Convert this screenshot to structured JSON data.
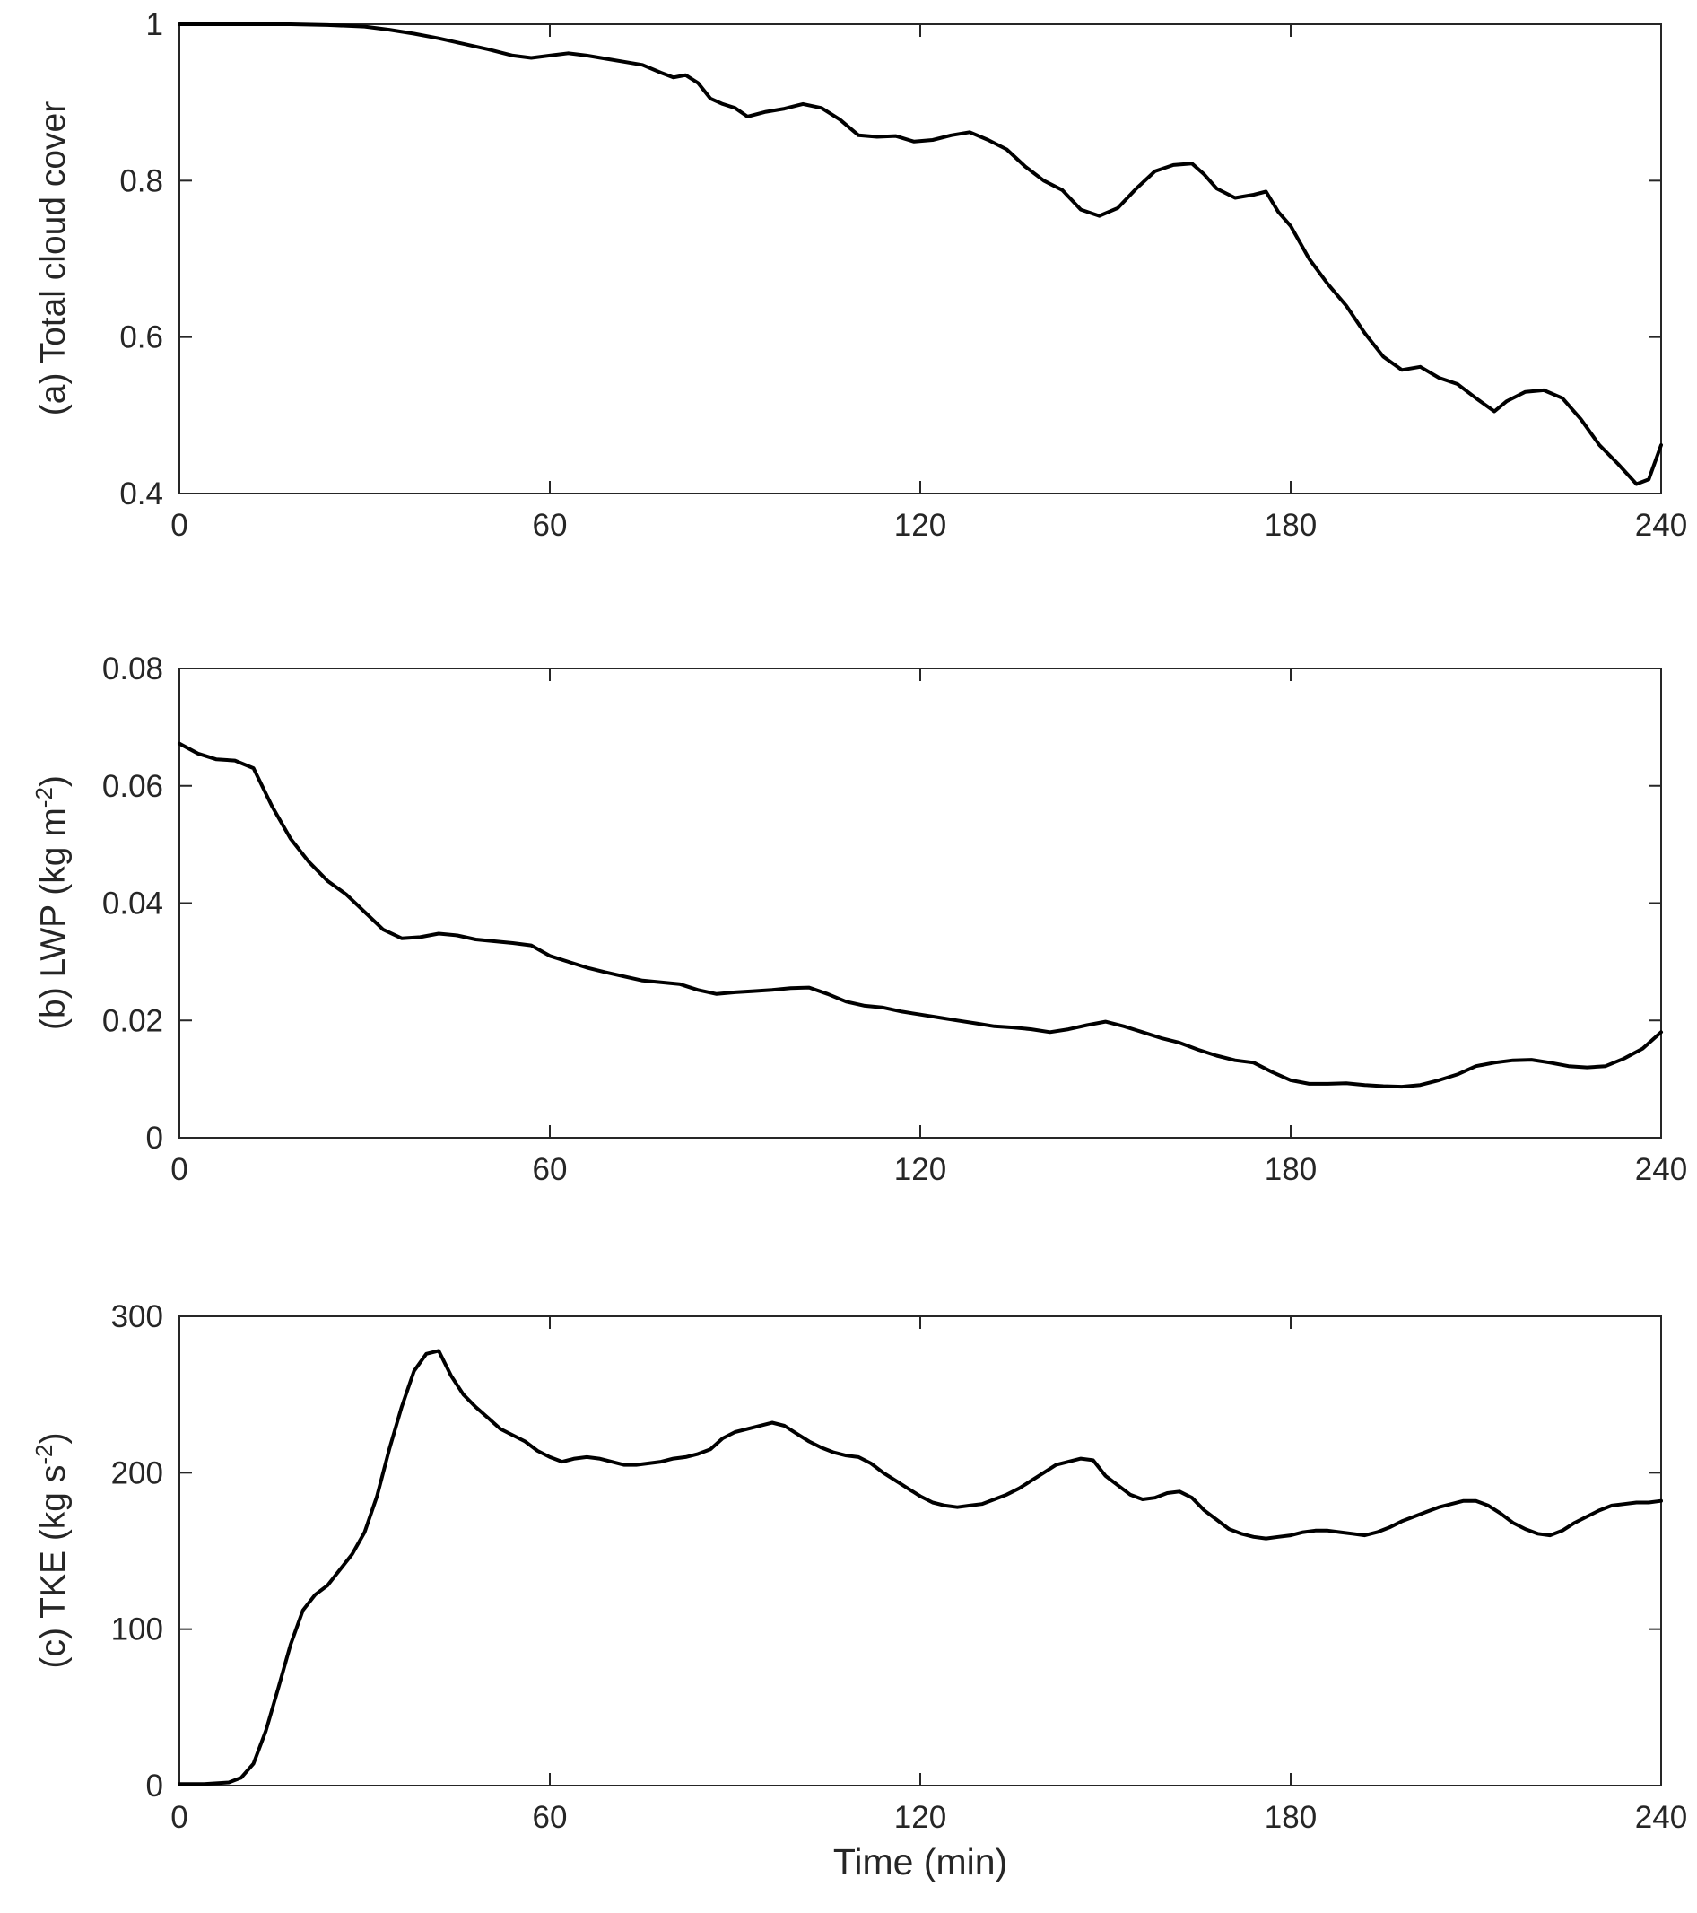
{
  "figure": {
    "xlabel": "Time (min)",
    "background_color": "#ffffff",
    "axis_color": "#262626",
    "line_color": "#000000"
  },
  "chart_data": [
    {
      "type": "line",
      "panel": "a",
      "ylabel": "(a) Total cloud cover",
      "ylabel_parts": [
        {
          "text": "(a) Total cloud cover",
          "sup": false
        }
      ],
      "xlim": [
        0,
        240
      ],
      "ylim": [
        0.4,
        1
      ],
      "x_ticks": [
        0,
        60,
        120,
        180,
        240
      ],
      "x_tick_labels": [
        "0",
        "60",
        "120",
        "180",
        "240"
      ],
      "y_ticks": [
        0.4,
        0.6,
        0.8,
        1
      ],
      "y_tick_labels": [
        "0.4",
        "0.6",
        "0.8",
        "1"
      ],
      "grid": false,
      "legend": null,
      "x": [
        0,
        6,
        12,
        18,
        24,
        30,
        34,
        38,
        42,
        46,
        50,
        54,
        57,
        60,
        63,
        66,
        69,
        72,
        75,
        78,
        80,
        82,
        84,
        86,
        88,
        90,
        92,
        95,
        98,
        101,
        104,
        107,
        110,
        113,
        116,
        119,
        122,
        125,
        128,
        131,
        134,
        137,
        140,
        143,
        146,
        149,
        152,
        155,
        158,
        161,
        164,
        166,
        168,
        171,
        174,
        176,
        178,
        180,
        183,
        186,
        189,
        192,
        195,
        198,
        201,
        204,
        207,
        210,
        213,
        215,
        218,
        221,
        224,
        227,
        230,
        233,
        236,
        238,
        240
      ],
      "y": [
        1.0,
        1.0,
        1.0,
        1.0,
        0.999,
        0.997,
        0.993,
        0.988,
        0.982,
        0.975,
        0.968,
        0.96,
        0.957,
        0.96,
        0.963,
        0.96,
        0.956,
        0.952,
        0.948,
        0.938,
        0.932,
        0.935,
        0.925,
        0.905,
        0.898,
        0.893,
        0.882,
        0.888,
        0.892,
        0.898,
        0.893,
        0.878,
        0.858,
        0.856,
        0.857,
        0.85,
        0.852,
        0.858,
        0.862,
        0.852,
        0.84,
        0.818,
        0.8,
        0.788,
        0.763,
        0.755,
        0.765,
        0.79,
        0.812,
        0.82,
        0.822,
        0.808,
        0.79,
        0.778,
        0.782,
        0.786,
        0.76,
        0.742,
        0.7,
        0.668,
        0.64,
        0.605,
        0.575,
        0.558,
        0.562,
        0.548,
        0.54,
        0.522,
        0.505,
        0.518,
        0.53,
        0.532,
        0.522,
        0.495,
        0.462,
        0.438,
        0.412,
        0.418,
        0.462
      ]
    },
    {
      "type": "line",
      "panel": "b",
      "ylabel": "(b) LWP (kg m⁻²)",
      "ylabel_parts": [
        {
          "text": "(b) LWP (kg m",
          "sup": false
        },
        {
          "text": "-2",
          "sup": true
        },
        {
          "text": ")",
          "sup": false
        }
      ],
      "xlim": [
        0,
        240
      ],
      "ylim": [
        0,
        0.08
      ],
      "x_ticks": [
        0,
        60,
        120,
        180,
        240
      ],
      "x_tick_labels": [
        "0",
        "60",
        "120",
        "180",
        "240"
      ],
      "y_ticks": [
        0,
        0.02,
        0.04,
        0.06,
        0.08
      ],
      "y_tick_labels": [
        "0",
        "0.02",
        "0.04",
        "0.06",
        "0.08"
      ],
      "grid": false,
      "legend": null,
      "x": [
        0,
        3,
        6,
        9,
        12,
        15,
        18,
        21,
        24,
        27,
        30,
        33,
        36,
        39,
        42,
        45,
        48,
        51,
        54,
        57,
        60,
        63,
        66,
        69,
        72,
        75,
        78,
        81,
        84,
        87,
        90,
        93,
        96,
        99,
        102,
        105,
        108,
        111,
        114,
        117,
        120,
        123,
        126,
        129,
        132,
        135,
        138,
        141,
        144,
        147,
        150,
        153,
        156,
        159,
        162,
        165,
        168,
        171,
        174,
        177,
        180,
        183,
        186,
        189,
        192,
        195,
        198,
        201,
        204,
        207,
        210,
        213,
        216,
        219,
        222,
        225,
        228,
        231,
        234,
        237,
        240
      ],
      "y": [
        0.0672,
        0.0655,
        0.0645,
        0.0643,
        0.063,
        0.0565,
        0.051,
        0.047,
        0.0438,
        0.0415,
        0.0385,
        0.0355,
        0.034,
        0.0342,
        0.0348,
        0.0345,
        0.0338,
        0.0335,
        0.0332,
        0.0328,
        0.031,
        0.03,
        0.029,
        0.0282,
        0.0275,
        0.0268,
        0.0265,
        0.0262,
        0.0252,
        0.0245,
        0.0248,
        0.025,
        0.0252,
        0.0255,
        0.0256,
        0.0245,
        0.0232,
        0.0225,
        0.0222,
        0.0215,
        0.021,
        0.0205,
        0.02,
        0.0195,
        0.019,
        0.0188,
        0.0185,
        0.018,
        0.0185,
        0.0192,
        0.0198,
        0.019,
        0.018,
        0.017,
        0.0162,
        0.015,
        0.014,
        0.0132,
        0.0128,
        0.0112,
        0.0098,
        0.0092,
        0.0092,
        0.0093,
        0.009,
        0.0088,
        0.0087,
        0.009,
        0.0098,
        0.0108,
        0.0122,
        0.0128,
        0.0132,
        0.0133,
        0.0128,
        0.0122,
        0.012,
        0.0122,
        0.0135,
        0.0152,
        0.018
      ]
    },
    {
      "type": "line",
      "panel": "c",
      "ylabel": "(c) TKE (kg s⁻²)",
      "ylabel_parts": [
        {
          "text": "(c) TKE (kg s",
          "sup": false
        },
        {
          "text": "-2",
          "sup": true
        },
        {
          "text": ")",
          "sup": false
        }
      ],
      "xlabel": "Time (min)",
      "xlim": [
        0,
        240
      ],
      "ylim": [
        0,
        300
      ],
      "x_ticks": [
        0,
        60,
        120,
        180,
        240
      ],
      "x_tick_labels": [
        "0",
        "60",
        "120",
        "180",
        "240"
      ],
      "y_ticks": [
        0,
        100,
        200,
        300
      ],
      "y_tick_labels": [
        "0",
        "100",
        "200",
        "300"
      ],
      "grid": false,
      "legend": null,
      "x": [
        0,
        4,
        8,
        10,
        12,
        14,
        16,
        18,
        20,
        22,
        24,
        26,
        28,
        30,
        32,
        34,
        36,
        38,
        40,
        42,
        44,
        46,
        48,
        50,
        52,
        54,
        56,
        58,
        60,
        62,
        64,
        66,
        68,
        70,
        72,
        74,
        76,
        78,
        80,
        82,
        84,
        86,
        88,
        90,
        93,
        96,
        98,
        100,
        102,
        104,
        106,
        108,
        110,
        112,
        114,
        116,
        118,
        120,
        122,
        124,
        126,
        128,
        130,
        132,
        134,
        136,
        138,
        140,
        142,
        144,
        146,
        148,
        150,
        152,
        154,
        156,
        158,
        160,
        162,
        164,
        166,
        168,
        170,
        172,
        174,
        176,
        178,
        180,
        182,
        184,
        186,
        188,
        190,
        192,
        194,
        196,
        198,
        200,
        202,
        204,
        206,
        208,
        210,
        212,
        214,
        216,
        218,
        220,
        222,
        224,
        226,
        228,
        230,
        232,
        234,
        236,
        238,
        240
      ],
      "y": [
        1,
        1,
        2,
        5,
        14,
        35,
        62,
        90,
        112,
        122,
        128,
        138,
        148,
        162,
        185,
        215,
        242,
        265,
        276,
        278,
        262,
        250,
        242,
        235,
        228,
        224,
        220,
        214,
        210,
        207,
        209,
        210,
        209,
        207,
        205,
        205,
        206,
        207,
        209,
        210,
        212,
        215,
        222,
        226,
        229,
        232,
        230,
        225,
        220,
        216,
        213,
        211,
        210,
        206,
        200,
        195,
        190,
        185,
        181,
        179,
        178,
        179,
        180,
        183,
        186,
        190,
        195,
        200,
        205,
        207,
        209,
        208,
        198,
        192,
        186,
        183,
        184,
        187,
        188,
        184,
        176,
        170,
        164,
        161,
        159,
        158,
        159,
        160,
        162,
        163,
        163,
        162,
        161,
        160,
        162,
        165,
        169,
        172,
        175,
        178,
        180,
        182,
        182,
        179,
        174,
        168,
        164,
        161,
        160,
        163,
        168,
        172,
        176,
        179,
        180,
        181,
        181,
        182
      ]
    }
  ]
}
